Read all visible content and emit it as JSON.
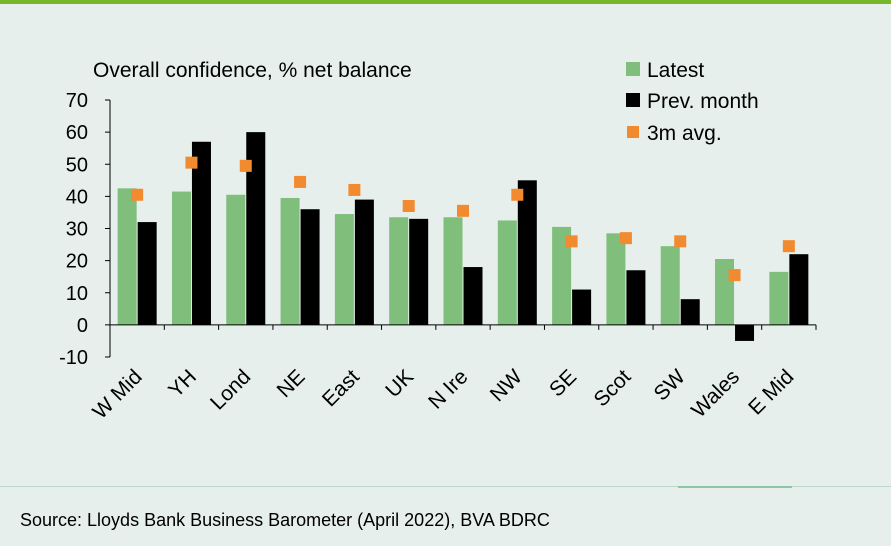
{
  "chart_data": {
    "type": "bar",
    "title": "Overall confidence, % net balance",
    "categories": [
      "W Mid",
      "YH",
      "Lond",
      "NE",
      "East",
      "UK",
      "N Ire",
      "NW",
      "SE",
      "Scot",
      "SW",
      "Wales",
      "E Mid"
    ],
    "series": [
      {
        "name": "Latest",
        "kind": "bar",
        "color": "#7fbf7b",
        "values": [
          42.5,
          41.5,
          40.5,
          39.5,
          34.5,
          33.5,
          33.5,
          32.5,
          30.5,
          28.5,
          24.5,
          20.5,
          16.5
        ]
      },
      {
        "name": "Prev. month",
        "kind": "bar",
        "color": "#000000",
        "values": [
          32,
          57,
          60,
          36,
          39,
          33,
          18,
          45,
          11,
          17,
          8,
          -5,
          22
        ]
      },
      {
        "name": "3m avg.",
        "kind": "marker",
        "color": "#f28a30",
        "values": [
          40.5,
          50.5,
          49.5,
          44.5,
          42,
          37,
          35.5,
          40.5,
          26,
          27,
          26,
          15.5,
          24.5
        ]
      }
    ],
    "yticks": [
      -10,
      0,
      10,
      20,
      30,
      40,
      50,
      60,
      70
    ],
    "ylim": [
      -10,
      70
    ],
    "grid": false,
    "legend_position": "top-right"
  },
  "footer": {
    "source": "Source: Lloyds Bank Business Barometer (April 2022), BVA BDRC"
  }
}
